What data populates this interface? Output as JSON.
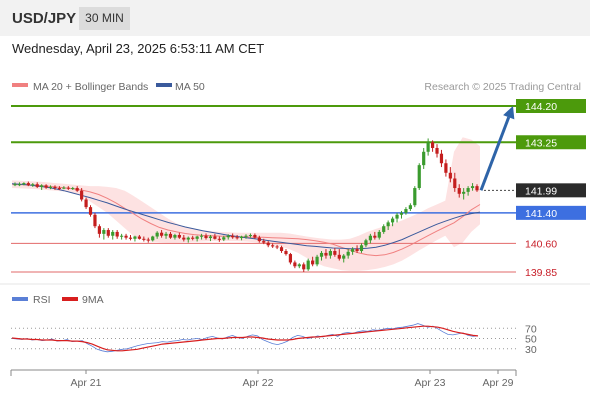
{
  "header": {
    "pair": "USD/JPY",
    "timeframe": "30 MIN"
  },
  "date_line": "Wednesday, April 23, 2025 6:53:11 AM CET",
  "legend": {
    "ma20": "MA 20 + Bollinger Bands",
    "ma50": "MA 50",
    "credit": "Research © 2025 Trading Central",
    "rsi": "RSI",
    "ma9": "9MA"
  },
  "colors": {
    "candle_up": "#3a9b2e",
    "candle_down": "#c41e1e",
    "ma20": "#f08080",
    "band": "#fde2e2",
    "ma50": "#3a5a9c",
    "resistance": "#4c9a0c",
    "pivot": "#3d6fe0",
    "support": "#e26a6a",
    "arrow": "#2e64a8",
    "rsi": "#5a7fd6",
    "rsi_ma": "#d81e1e",
    "price_tag": "#2b2b2b"
  },
  "chart_data": [
    {
      "type": "candlestick",
      "title": "USD/JPY",
      "timeframe": "30 MIN",
      "x_ticks": [
        "Apr 21",
        "Apr 22",
        "Apr 23",
        "Apr 29"
      ],
      "price_range": [
        139.7,
        144.35
      ],
      "current_price": 141.99,
      "levels": [
        {
          "label": "144.20",
          "value": 144.2,
          "kind": "resistance"
        },
        {
          "label": "143.25",
          "value": 143.25,
          "kind": "resistance"
        },
        {
          "label": "141.99",
          "value": 141.99,
          "kind": "last"
        },
        {
          "label": "141.40",
          "value": 141.4,
          "kind": "pivot"
        },
        {
          "label": "140.60",
          "value": 140.6,
          "kind": "support"
        },
        {
          "label": "139.85",
          "value": 139.85,
          "kind": "support"
        }
      ],
      "forecast_arrow": {
        "from": 141.99,
        "to": 144.2
      },
      "candles": [
        [
          142.15,
          142.2,
          142.1,
          142.15
        ],
        [
          142.15,
          142.2,
          142.1,
          142.15
        ],
        [
          142.15,
          142.2,
          142.12,
          142.18
        ],
        [
          142.18,
          142.22,
          142.1,
          142.12
        ],
        [
          142.12,
          142.18,
          142.08,
          142.15
        ],
        [
          142.15,
          142.2,
          142.05,
          142.08
        ],
        [
          142.08,
          142.15,
          142.0,
          142.12
        ],
        [
          142.12,
          142.15,
          142.03,
          142.06
        ],
        [
          142.06,
          142.12,
          142.02,
          142.08
        ],
        [
          142.08,
          142.12,
          142.0,
          142.05
        ],
        [
          142.05,
          142.1,
          142.0,
          142.04
        ],
        [
          142.04,
          142.1,
          142.02,
          142.06
        ],
        [
          142.06,
          142.1,
          142.0,
          142.05
        ],
        [
          142.05,
          142.08,
          142.0,
          142.05
        ],
        [
          142.05,
          142.1,
          141.95,
          141.98
        ],
        [
          141.98,
          142.05,
          141.7,
          141.75
        ],
        [
          141.75,
          141.8,
          141.5,
          141.55
        ],
        [
          141.55,
          141.6,
          141.3,
          141.35
        ],
        [
          141.35,
          141.4,
          141.0,
          141.05
        ],
        [
          141.05,
          141.1,
          140.75,
          140.85
        ],
        [
          140.85,
          141.0,
          140.7,
          140.95
        ],
        [
          140.95,
          141.0,
          140.75,
          140.8
        ],
        [
          140.8,
          140.95,
          140.7,
          140.9
        ],
        [
          140.9,
          140.95,
          140.72,
          140.78
        ],
        [
          140.78,
          140.85,
          140.7,
          140.8
        ],
        [
          140.8,
          140.85,
          140.7,
          140.75
        ],
        [
          140.75,
          140.82,
          140.68,
          140.72
        ],
        [
          140.72,
          140.8,
          140.65,
          140.78
        ],
        [
          140.78,
          140.82,
          140.7,
          140.72
        ],
        [
          140.72,
          140.78,
          140.65,
          140.7
        ],
        [
          140.7,
          140.75,
          140.62,
          140.68
        ],
        [
          140.68,
          140.8,
          140.65,
          140.78
        ],
        [
          140.78,
          140.92,
          140.72,
          140.88
        ],
        [
          140.88,
          140.95,
          140.75,
          140.8
        ],
        [
          140.8,
          140.9,
          140.72,
          140.85
        ],
        [
          140.85,
          140.9,
          140.72,
          140.75
        ],
        [
          140.75,
          140.85,
          140.7,
          140.82
        ],
        [
          140.82,
          140.88,
          140.72,
          140.75
        ],
        [
          140.75,
          140.82,
          140.65,
          140.7
        ],
        [
          140.7,
          140.78,
          140.62,
          140.75
        ],
        [
          140.75,
          140.8,
          140.68,
          140.72
        ],
        [
          140.72,
          140.8,
          140.65,
          140.78
        ],
        [
          140.78,
          140.85,
          140.7,
          140.8
        ],
        [
          140.8,
          140.86,
          140.7,
          140.74
        ],
        [
          140.74,
          140.82,
          140.66,
          140.78
        ],
        [
          140.78,
          140.85,
          140.7,
          140.72
        ],
        [
          140.72,
          140.78,
          140.64,
          140.7
        ],
        [
          140.7,
          140.8,
          140.66,
          140.76
        ],
        [
          140.76,
          140.84,
          140.7,
          140.8
        ],
        [
          140.8,
          140.86,
          140.72,
          140.76
        ],
        [
          140.76,
          140.82,
          140.7,
          140.74
        ],
        [
          140.74,
          140.8,
          140.68,
          140.78
        ],
        [
          140.78,
          140.84,
          140.72,
          140.8
        ],
        [
          140.8,
          140.86,
          140.75,
          140.82
        ],
        [
          140.82,
          140.86,
          140.72,
          140.75
        ],
        [
          140.75,
          140.8,
          140.62,
          140.66
        ],
        [
          140.66,
          140.72,
          140.58,
          140.62
        ],
        [
          140.62,
          140.66,
          140.5,
          140.55
        ],
        [
          140.55,
          140.6,
          140.48,
          140.52
        ],
        [
          140.52,
          140.56,
          140.45,
          140.5
        ],
        [
          140.5,
          140.54,
          140.35,
          140.4
        ],
        [
          140.4,
          140.45,
          140.28,
          140.32
        ],
        [
          140.32,
          140.35,
          140.05,
          140.1
        ],
        [
          140.1,
          140.15,
          139.95,
          140.0
        ],
        [
          140.0,
          140.08,
          139.95,
          140.05
        ],
        [
          140.05,
          140.1,
          139.85,
          139.92
        ],
        [
          139.92,
          140.2,
          139.88,
          140.15
        ],
        [
          140.15,
          140.25,
          140.0,
          140.05
        ],
        [
          140.05,
          140.3,
          140.0,
          140.25
        ],
        [
          140.25,
          140.4,
          140.15,
          140.35
        ],
        [
          140.35,
          140.45,
          140.2,
          140.28
        ],
        [
          140.28,
          140.45,
          140.2,
          140.4
        ],
        [
          140.4,
          140.48,
          140.25,
          140.3
        ],
        [
          140.3,
          140.45,
          140.15,
          140.2
        ],
        [
          140.2,
          140.32,
          140.1,
          140.28
        ],
        [
          140.28,
          140.45,
          140.2,
          140.38
        ],
        [
          140.38,
          140.5,
          140.3,
          140.45
        ],
        [
          140.45,
          140.55,
          140.35,
          140.4
        ],
        [
          140.4,
          140.6,
          140.35,
          140.55
        ],
        [
          140.55,
          140.72,
          140.5,
          140.68
        ],
        [
          140.68,
          140.85,
          140.6,
          140.8
        ],
        [
          140.8,
          140.9,
          140.7,
          140.75
        ],
        [
          140.75,
          140.95,
          140.7,
          140.9
        ],
        [
          140.9,
          141.1,
          140.85,
          141.05
        ],
        [
          141.05,
          141.2,
          140.95,
          141.15
        ],
        [
          141.15,
          141.3,
          141.05,
          141.25
        ],
        [
          141.25,
          141.4,
          141.15,
          141.35
        ],
        [
          141.35,
          141.45,
          141.25,
          141.4
        ],
        [
          141.4,
          141.55,
          141.35,
          141.5
        ],
        [
          141.5,
          141.65,
          141.45,
          141.6
        ],
        [
          141.6,
          142.1,
          141.55,
          142.05
        ],
        [
          142.05,
          142.7,
          142.0,
          142.65
        ],
        [
          142.65,
          143.1,
          142.55,
          143.0
        ],
        [
          143.0,
          143.35,
          142.9,
          143.25
        ],
        [
          143.25,
          143.3,
          143.0,
          143.1
        ],
        [
          143.1,
          143.2,
          142.85,
          142.95
        ],
        [
          142.95,
          143.05,
          142.6,
          142.7
        ],
        [
          142.7,
          142.8,
          142.35,
          142.45
        ],
        [
          142.45,
          142.6,
          142.2,
          142.3
        ],
        [
          142.3,
          142.45,
          141.95,
          142.05
        ],
        [
          142.05,
          142.15,
          141.8,
          141.9
        ],
        [
          141.9,
          142.05,
          141.75,
          141.95
        ],
        [
          141.95,
          142.1,
          141.85,
          142.05
        ],
        [
          142.05,
          142.18,
          141.98,
          142.1
        ],
        [
          142.1,
          142.15,
          141.95,
          141.99
        ]
      ],
      "ma20": [
        142.15,
        142.14,
        142.13,
        142.12,
        142.1,
        142.08,
        142.06,
        142.03,
        142.0,
        141.95,
        141.88,
        141.78,
        141.66,
        141.52,
        141.38,
        141.24,
        141.12,
        141.02,
        140.95,
        140.9,
        140.86,
        140.83,
        140.81,
        140.8,
        140.79,
        140.78,
        140.77,
        140.77,
        140.76,
        140.76,
        140.75,
        140.74,
        140.73,
        140.72,
        140.7,
        140.67,
        140.63,
        140.58,
        140.5,
        140.42,
        140.35,
        140.3,
        140.28,
        140.3,
        140.36,
        140.45,
        140.56,
        140.68,
        140.8,
        140.92,
        141.03,
        141.14,
        141.3,
        141.48,
        141.62
      ],
      "bb_upper": [
        142.25,
        142.24,
        142.23,
        142.22,
        142.2,
        142.18,
        142.16,
        142.14,
        142.12,
        142.1,
        142.1,
        142.08,
        142.05,
        141.98,
        141.85,
        141.7,
        141.55,
        141.4,
        141.25,
        141.12,
        141.02,
        140.97,
        140.94,
        140.92,
        140.9,
        140.89,
        140.88,
        140.88,
        140.88,
        140.88,
        140.88,
        140.88,
        140.86,
        140.82,
        140.78,
        140.75,
        140.72,
        140.7,
        140.7,
        140.72,
        140.8,
        140.9,
        140.98,
        141.05,
        141.12,
        141.2,
        141.3,
        141.4,
        141.52,
        141.62,
        141.72,
        143.0,
        143.38,
        143.32,
        143.15
      ],
      "bb_lower": [
        142.05,
        142.04,
        142.03,
        142.02,
        142.0,
        141.98,
        141.96,
        141.92,
        141.85,
        141.7,
        141.55,
        141.4,
        141.2,
        141.0,
        140.8,
        140.7,
        140.65,
        140.63,
        140.62,
        140.62,
        140.63,
        140.64,
        140.65,
        140.66,
        140.66,
        140.66,
        140.66,
        140.65,
        140.63,
        140.6,
        140.56,
        140.52,
        140.45,
        140.35,
        140.22,
        140.1,
        140.0,
        139.95,
        139.9,
        139.88,
        139.88,
        139.9,
        139.93,
        139.98,
        140.05,
        140.15,
        140.28,
        140.42,
        140.55,
        140.68,
        140.8,
        140.5,
        140.62,
        140.9,
        141.1
      ],
      "ma50": [
        142.16,
        142.15,
        142.13,
        142.1,
        142.07,
        142.03,
        141.98,
        141.92,
        141.86,
        141.8,
        141.73,
        141.66,
        141.58,
        141.5,
        141.43,
        141.36,
        141.29,
        141.22,
        141.15,
        141.09,
        141.03,
        140.98,
        140.93,
        140.89,
        140.85,
        140.81,
        140.78,
        140.75,
        140.72,
        140.69,
        140.66,
        140.63,
        140.6,
        140.57,
        140.54,
        140.52,
        140.5,
        140.48,
        140.47,
        140.46,
        140.46,
        140.47,
        140.5,
        140.55,
        140.62,
        140.7,
        140.8,
        140.9,
        141.0,
        141.1,
        141.18,
        141.26,
        141.33,
        141.38,
        141.42
      ]
    },
    {
      "type": "line",
      "title": "RSI",
      "series": [
        {
          "name": "RSI",
          "values": [
            50,
            49,
            48,
            50,
            47,
            48,
            46,
            47,
            49,
            45,
            46,
            48,
            44,
            45,
            46,
            40,
            35,
            29,
            26,
            24,
            25,
            27,
            29,
            30,
            33,
            36,
            38,
            40,
            41,
            42,
            44,
            43,
            45,
            46,
            48,
            47,
            49,
            50,
            48,
            52,
            54,
            51,
            49,
            53,
            56,
            52,
            50,
            54,
            57,
            55,
            48,
            44,
            40,
            38,
            41,
            45,
            52,
            56,
            54,
            50,
            52,
            55,
            53,
            56,
            58,
            54,
            60,
            62,
            60,
            63,
            65,
            64,
            67,
            66,
            68,
            70,
            69,
            71,
            72,
            74,
            76,
            79,
            76,
            72,
            74,
            69,
            63,
            58,
            57,
            59,
            61,
            56,
            54,
            55
          ]
        },
        {
          "name": "9MA",
          "values": [
            51,
            50,
            49,
            49,
            48,
            48,
            47,
            47,
            47,
            46,
            46,
            46,
            45,
            45,
            44,
            42,
            39,
            35,
            31,
            28,
            27,
            26,
            26,
            27,
            28,
            29,
            31,
            33,
            35,
            37,
            39,
            40,
            41,
            42,
            43,
            44,
            45,
            46,
            47,
            48,
            49,
            50,
            50,
            51,
            52,
            52,
            52,
            53,
            53,
            52,
            51,
            49,
            48,
            47,
            47,
            47,
            48,
            50,
            51,
            52,
            53,
            53,
            54,
            55,
            56,
            57,
            58,
            59,
            60,
            61,
            62,
            63,
            64,
            65,
            66,
            67,
            68,
            69,
            70,
            71,
            72,
            73,
            74,
            74,
            73,
            72,
            70,
            67,
            64,
            62,
            60,
            58,
            56,
            55
          ]
        }
      ],
      "y_ticks": [
        70,
        50,
        30
      ],
      "ylim": [
        10,
        90
      ]
    }
  ]
}
